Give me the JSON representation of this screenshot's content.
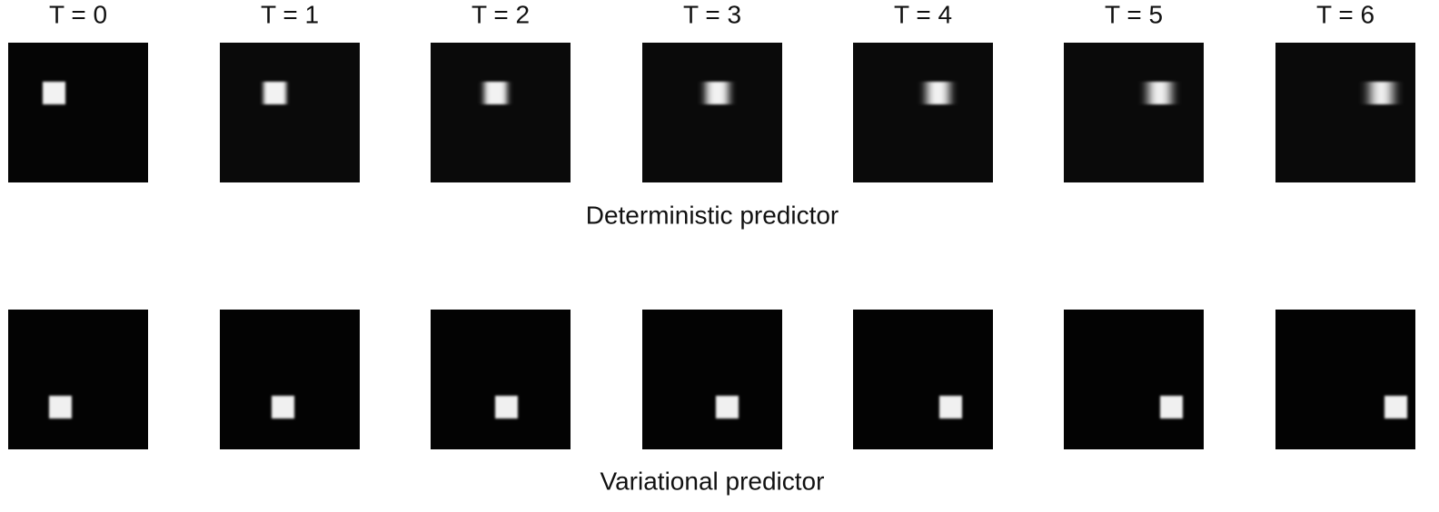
{
  "column_labels": [
    "T = 0",
    "T = 1",
    "T = 2",
    "T = 3",
    "T = 4",
    "T = 5",
    "T = 6"
  ],
  "rows": [
    {
      "caption": "Deterministic predictor"
    },
    {
      "caption": "Variational predictor"
    }
  ]
}
